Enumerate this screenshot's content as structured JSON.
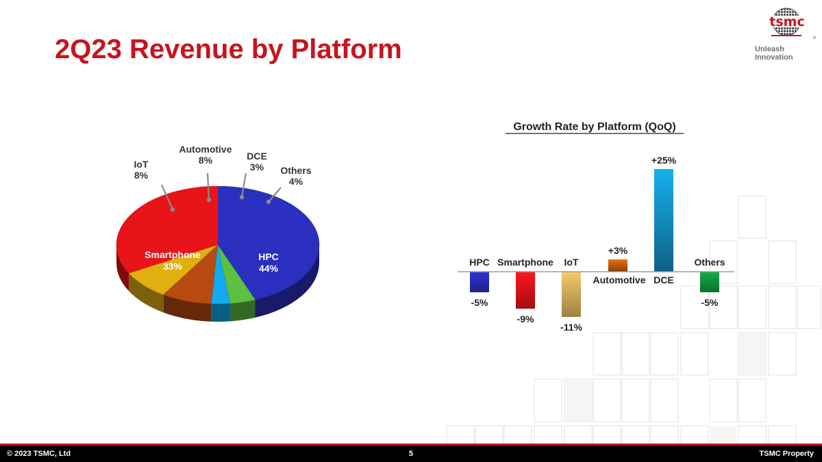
{
  "slide": {
    "title": "2Q23 Revenue by Platform",
    "logo_text": "tsmc",
    "logo_registered": "®",
    "tagline": "Unleash Innovation"
  },
  "footer": {
    "copyright": "© 2023 TSMC, Ltd",
    "page_number": "5",
    "property": "TSMC Property"
  },
  "colors": {
    "title": "#c8141e",
    "footer_bar": "#000000",
    "footer_line": "#c8141e"
  },
  "chart_data": [
    {
      "type": "pie",
      "title": "",
      "slices": [
        {
          "label": "HPC",
          "value": 44,
          "value_label": "44%",
          "color": "#2b2fc0"
        },
        {
          "label": "Smartphone",
          "value": 33,
          "value_label": "33%",
          "color": "#e8141a"
        },
        {
          "label": "IoT",
          "value": 8,
          "value_label": "8%",
          "color": "#e0b010"
        },
        {
          "label": "Automotive",
          "value": 8,
          "value_label": "8%",
          "color": "#b84a10"
        },
        {
          "label": "DCE",
          "value": 3,
          "value_label": "3%",
          "color": "#12aaf0"
        },
        {
          "label": "Others",
          "value": 4,
          "value_label": "4%",
          "color": "#5cc040"
        }
      ]
    },
    {
      "type": "bar",
      "title": "Growth Rate by Platform (QoQ)",
      "xlabel": "",
      "ylabel": "",
      "categories": [
        "HPC",
        "Smartphone",
        "IoT",
        "Automotive",
        "DCE",
        "Others"
      ],
      "values": [
        -5,
        -9,
        -11,
        3,
        25,
        -5
      ],
      "value_labels": [
        "-5%",
        "-9%",
        "-11%",
        "+3%",
        "+25%",
        "-5%"
      ],
      "colors": [
        "#2b2fc0",
        "#e8141a",
        "#e0b860",
        "#f07010",
        "#18b0f0",
        "#10a040"
      ],
      "ylim": [
        -11,
        25
      ]
    }
  ]
}
